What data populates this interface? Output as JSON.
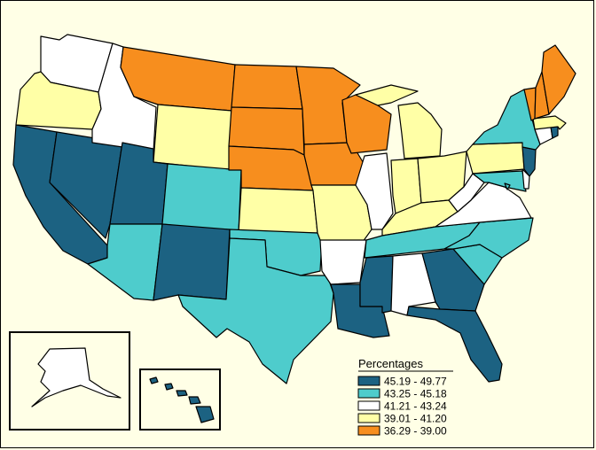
{
  "legend": {
    "title": "Percentages",
    "classes": [
      {
        "label": "45.19 - 49.77",
        "color": "#1c6282"
      },
      {
        "label": "43.25 - 45.18",
        "color": "#4ecccc"
      },
      {
        "label": "41.21 - 43.24",
        "color": "#ffffff"
      },
      {
        "label": "39.01 - 41.20",
        "color": "#ffffa6"
      },
      {
        "label": "36.29 - 39.00",
        "color": "#f78e1e"
      }
    ]
  },
  "map_data": {
    "type": "choropleth",
    "region": "United States",
    "classes": [
      "45.19 - 49.77",
      "43.25 - 45.18",
      "41.21 - 43.24",
      "39.01 - 41.20",
      "36.29 - 39.00"
    ],
    "states": {
      "WA": 2,
      "OR": 3,
      "CA": 0,
      "NV": 0,
      "ID": 2,
      "MT": 4,
      "WY": 3,
      "UT": 0,
      "AZ": 1,
      "CO": 1,
      "NM": 0,
      "ND": 4,
      "SD": 4,
      "NE": 4,
      "KS": 3,
      "OK": 1,
      "TX": 1,
      "MN": 4,
      "IA": 4,
      "MO": 3,
      "AR": 2,
      "LA": 0,
      "WI": 4,
      "IL": 2,
      "MI": 3,
      "IN": 3,
      "OH": 3,
      "KY": 3,
      "TN": 1,
      "MS": 0,
      "AL": 2,
      "GA": 0,
      "FL": 0,
      "SC": 1,
      "NC": 1,
      "VA": 2,
      "WV": 2,
      "PA": 3,
      "NY": 1,
      "VT": 4,
      "NH": 4,
      "ME": 4,
      "MA": 3,
      "RI": 0,
      "CT": 2,
      "NJ": 0,
      "DE": 2,
      "MD": 1,
      "DC": 1,
      "AK": 2,
      "HI": 0
    }
  }
}
